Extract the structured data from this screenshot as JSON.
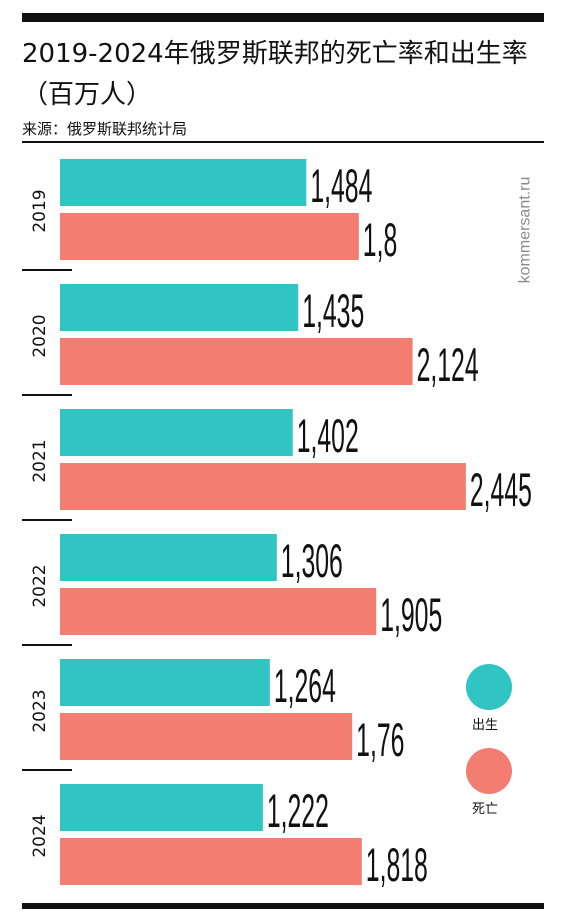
{
  "header": {
    "title": "2019-2024年俄罗斯联邦的死亡率和出生率（百万人）",
    "source": "来源：俄罗斯联邦统计局",
    "watermark": "kommersant.ru"
  },
  "legend": [
    {
      "label": "出生",
      "color": "#30c4c2"
    },
    {
      "label": "死亡",
      "color": "#f47d72"
    }
  ],
  "chart_data": {
    "type": "bar",
    "orientation": "horizontal",
    "title": "2019-2024年俄罗斯联邦的死亡率和出生率（百万人）",
    "categories": [
      "2019",
      "2020",
      "2021",
      "2022",
      "2023",
      "2024"
    ],
    "series": [
      {
        "name": "出生",
        "color": "#30c4c2",
        "values": [
          1.484,
          1.435,
          1.402,
          1.306,
          1.264,
          1.222
        ],
        "labels": [
          "1,484",
          "1,435",
          "1,402",
          "1,306",
          "1,264",
          "1,222"
        ]
      },
      {
        "name": "死亡",
        "color": "#f47d72",
        "values": [
          1.8,
          2.124,
          2.445,
          1.905,
          1.76,
          1.818
        ],
        "labels": [
          "1,8",
          "2,124",
          "2,445",
          "1,905",
          "1,76",
          "1,818"
        ]
      }
    ],
    "xlim": [
      0,
      2.6
    ],
    "grid": false,
    "legend_position": "right"
  }
}
